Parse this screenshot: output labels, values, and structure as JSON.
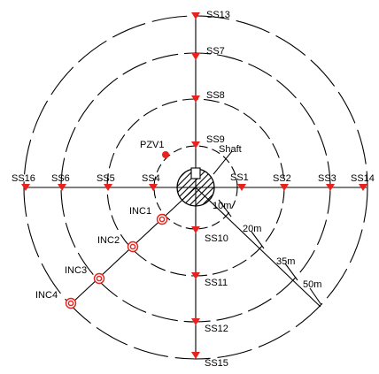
{
  "diagram": {
    "colors": {
      "line": "#000000",
      "marker_red": "#e8221c",
      "background": "#ffffff"
    },
    "shaft_label": "Shaft",
    "ring_labels": [
      "10m",
      "20m",
      "35m",
      "50m"
    ],
    "settlement_points": [
      {
        "id": "ss13",
        "label": "SS13"
      },
      {
        "id": "ss7",
        "label": "SS7"
      },
      {
        "id": "ss8",
        "label": "SS8"
      },
      {
        "id": "ss9",
        "label": "SS9"
      },
      {
        "id": "ss1",
        "label": "SS1"
      },
      {
        "id": "ss2",
        "label": "SS2"
      },
      {
        "id": "ss3",
        "label": "SS3"
      },
      {
        "id": "ss14",
        "label": "SS14"
      },
      {
        "id": "ss4",
        "label": "SS4"
      },
      {
        "id": "ss5",
        "label": "SS5"
      },
      {
        "id": "ss6",
        "label": "SS6"
      },
      {
        "id": "ss16",
        "label": "SS16"
      },
      {
        "id": "ss10",
        "label": "SS10"
      },
      {
        "id": "ss11",
        "label": "SS11"
      },
      {
        "id": "ss12",
        "label": "SS12"
      },
      {
        "id": "ss15",
        "label": "SS15"
      }
    ],
    "inclinometers": [
      {
        "id": "inc1",
        "label": "INC1"
      },
      {
        "id": "inc2",
        "label": "INC2"
      },
      {
        "id": "inc3",
        "label": "INC3"
      },
      {
        "id": "inc4",
        "label": "INC4"
      }
    ],
    "piezometer": {
      "id": "pzv1",
      "label": "PZV1"
    },
    "marker_icons": {
      "settlement": "red-down-triangle-icon",
      "inclinometer": "red-double-circle-icon",
      "piezometer": "red-dot-icon"
    }
  }
}
